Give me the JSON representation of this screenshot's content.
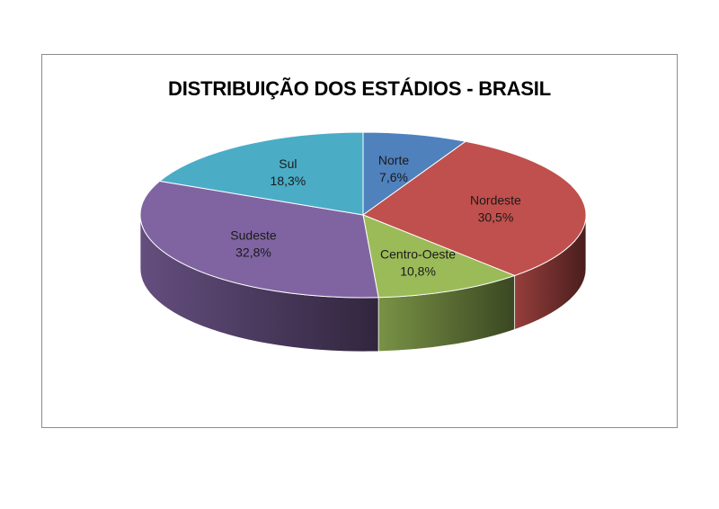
{
  "chart_data": {
    "type": "pie",
    "title": "DISTRIBUIÇÃO DOS ESTÁDIOS - BRASIL",
    "categories": [
      "Norte",
      "Nordeste",
      "Centro-Oeste",
      "Sudeste",
      "Sul"
    ],
    "values": [
      7.6,
      30.5,
      10.8,
      32.8,
      18.3
    ],
    "value_labels": [
      "7,6%",
      "30,5%",
      "10,8%",
      "32,8%",
      "18,3%"
    ],
    "colors": [
      "#4f81bd",
      "#c0504d",
      "#9bbb59",
      "#8064a2",
      "#4bacc6"
    ],
    "style": "3d",
    "legend": "none"
  }
}
